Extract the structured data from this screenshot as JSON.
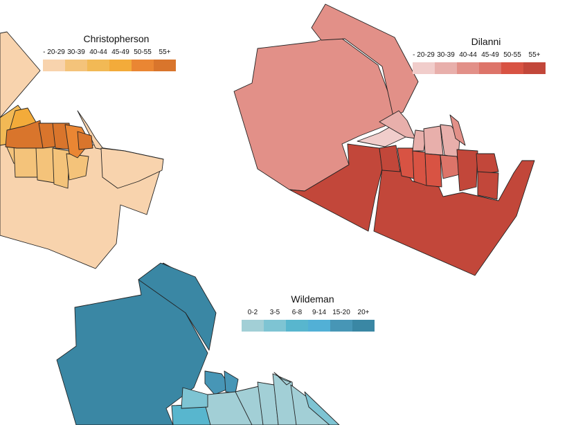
{
  "maps": [
    {
      "id": "christopherson",
      "title": "Christopherson",
      "bins": [
        "- 20-29",
        "30-39",
        "40-44",
        "45-49",
        "50-55",
        "55+"
      ],
      "colors": [
        "#f8d3ad",
        "#f4c37a",
        "#f2b955",
        "#f3ab3a",
        "#ea8633",
        "#d9752c"
      ]
    },
    {
      "id": "dilanni",
      "title": "Dilanni",
      "bins": [
        "- 20-29",
        "30-39",
        "40-44",
        "45-49",
        "50-55",
        "55+"
      ],
      "colors": [
        "#f1cdcb",
        "#e8afab",
        "#e29088",
        "#dd7469",
        "#d85343",
        "#c2473a"
      ]
    },
    {
      "id": "wildeman",
      "title": "Wildeman",
      "bins": [
        "0-2",
        "3-5",
        "6-8",
        "9-14",
        "15-20",
        "20+"
      ],
      "colors": [
        "#a2cfd6",
        "#7ec4d3",
        "#58b6ce",
        "#52b0d6",
        "#4796b6",
        "#3a87a4"
      ]
    }
  ]
}
